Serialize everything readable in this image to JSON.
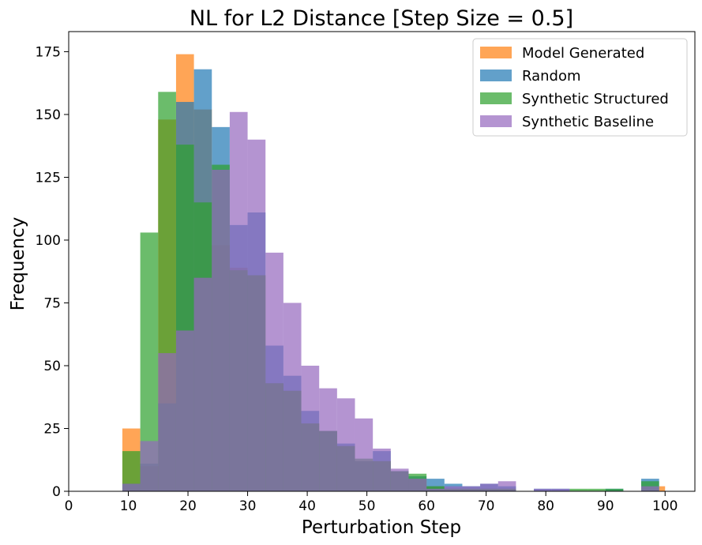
{
  "chart_data": {
    "type": "histogram",
    "title": "NL for L2 Distance [Step Size = 0.5]",
    "xlabel": "Perturbation Step",
    "ylabel": "Frequency",
    "xlim": [
      0,
      105
    ],
    "ylim": [
      0,
      183
    ],
    "xticks": [
      0,
      10,
      20,
      30,
      40,
      50,
      60,
      70,
      80,
      90,
      100
    ],
    "yticks": [
      0,
      25,
      50,
      75,
      100,
      125,
      150,
      175
    ],
    "bin_edges": [
      9,
      12,
      15,
      18,
      21,
      24,
      27,
      30,
      33,
      36,
      39,
      42,
      45,
      48,
      51,
      54,
      57,
      60,
      63,
      66,
      69,
      72,
      75,
      78,
      81,
      84,
      87,
      90,
      93,
      96,
      99,
      100
    ],
    "legend_position": "top-right",
    "series": [
      {
        "name": "Model Generated",
        "color": "#ff7f0e",
        "alpha": 0.7,
        "values": [
          25,
          10,
          148,
          174,
          152,
          98,
          89,
          86,
          43,
          40,
          27,
          24,
          18,
          12,
          12,
          8,
          5,
          2,
          1,
          1,
          1,
          1,
          0,
          0,
          0,
          0,
          0,
          0,
          0,
          0,
          2
        ]
      },
      {
        "name": "Random",
        "color": "#1f77b4",
        "alpha": 0.7,
        "values": [
          3,
          11,
          35,
          155,
          168,
          145,
          106,
          111,
          58,
          46,
          32,
          24,
          19,
          12,
          16,
          8,
          6,
          5,
          3,
          2,
          3,
          2,
          0,
          1,
          1,
          0,
          0,
          1,
          0,
          5,
          0
        ]
      },
      {
        "name": "Synthetic Structured",
        "color": "#2ca02c",
        "alpha": 0.7,
        "values": [
          16,
          103,
          159,
          138,
          115,
          130,
          88,
          86,
          43,
          40,
          27,
          24,
          18,
          13,
          12,
          8,
          7,
          2,
          1,
          1,
          1,
          1,
          0,
          0,
          0,
          1,
          1,
          1,
          0,
          4,
          0
        ]
      },
      {
        "name": "Synthetic Baseline",
        "color": "#9467bd",
        "alpha": 0.7,
        "values": [
          3,
          20,
          55,
          64,
          85,
          128,
          151,
          140,
          95,
          75,
          50,
          41,
          37,
          29,
          17,
          9,
          5,
          1,
          2,
          2,
          3,
          4,
          0,
          1,
          1,
          0,
          0,
          0,
          0,
          2,
          0
        ]
      }
    ]
  }
}
